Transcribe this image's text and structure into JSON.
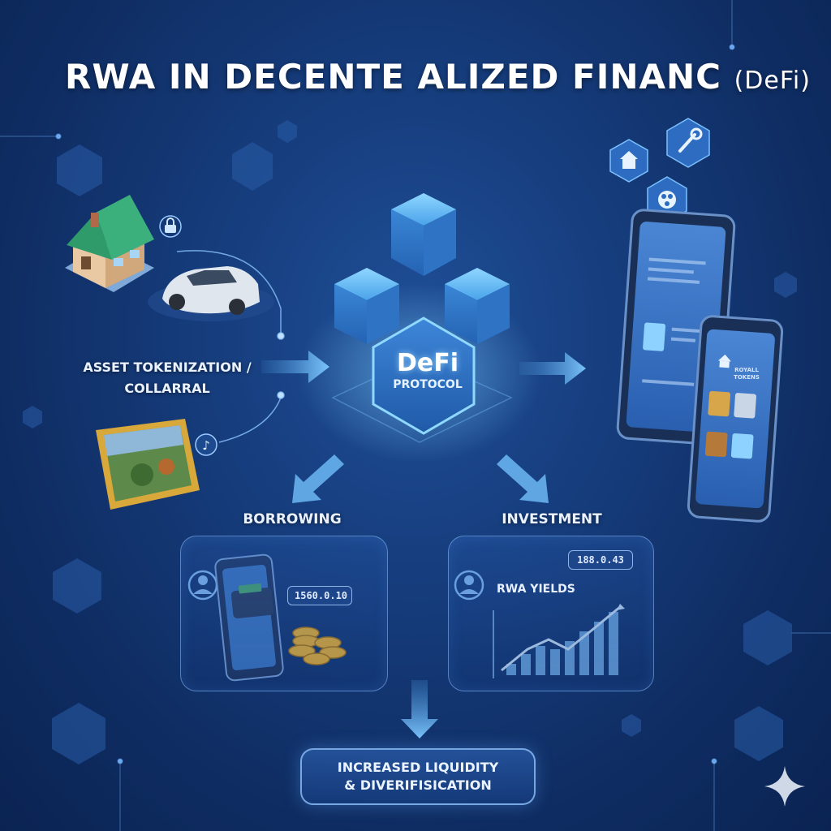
{
  "title": {
    "main": "RWA IN DECENTE ALIZED FINANC",
    "sub": "(DeFi)"
  },
  "asset_label": {
    "line1": "ASSET TOKENIZATION /",
    "line2": "COLLARRAL"
  },
  "hub": {
    "name": "DeFi",
    "subtitle": "PROTOCOL"
  },
  "borrowing": {
    "label": "BORROWING",
    "amount": "1560.0.10"
  },
  "investment": {
    "label": "INVESTMENT",
    "amount": "188.0.43",
    "yields_label": "RWA YIELDS"
  },
  "result": {
    "line1": "INCREASED LIQUIDITY",
    "line2": "& DIVERIFISICATION"
  },
  "phone": {
    "title_line1": "ROYALL",
    "title_line2": "TOKENS"
  },
  "icons": [
    "house-icon",
    "car-icon",
    "painting-icon",
    "lock-icon",
    "music-note-icon",
    "tool-icon",
    "film-reel-icon",
    "user-icon",
    "coins-icon",
    "wallet-icon",
    "sparkle-icon"
  ],
  "colors": {
    "background": "#163d7d",
    "accent": "#5fc3ff",
    "cube": "#4a9be8",
    "panel_border": "#8cbeff",
    "coin": "#f2b632"
  }
}
